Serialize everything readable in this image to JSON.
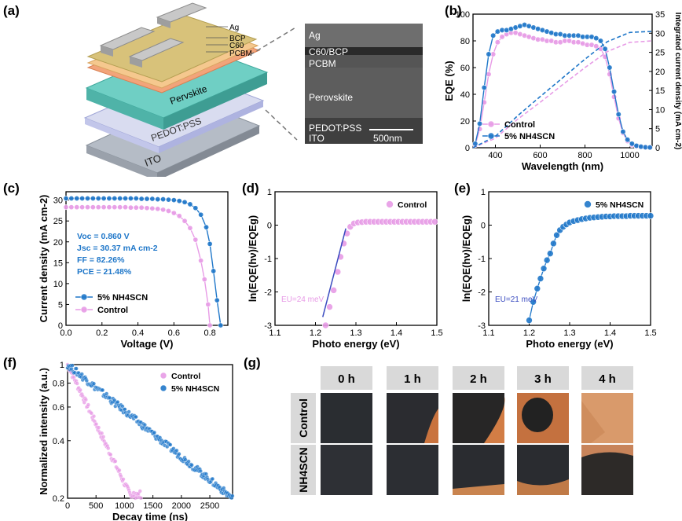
{
  "panel_labels": {
    "a": "(a)",
    "b": "(b)",
    "c": "(c)",
    "d": "(d)",
    "e": "(e)",
    "f": "(f)",
    "g": "(g)"
  },
  "colors": {
    "control": "#e79be6",
    "nh4": "#1f77c9",
    "blue_line": "#3b4cc0"
  },
  "panel_a": {
    "layers": [
      "Ag",
      "BCP",
      "C60",
      "PCBM",
      "Pervskite",
      "PEDOT:PSS",
      "ITO"
    ],
    "sem_labels": [
      "Ag",
      "C60/BCP",
      "PCBM",
      "Perovskite",
      "PEDOT:PSS",
      "ITO"
    ],
    "scale_bar": "500nm"
  },
  "chart_data": [
    {
      "id": "b",
      "type": "line",
      "xlabel": "Wavelength (nm)",
      "ylabel": "EQE (%)",
      "y2label": "Integrated current density (mA cm-2)",
      "xlim": [
        300,
        1100
      ],
      "ylim": [
        0,
        100
      ],
      "y2lim": [
        0,
        35
      ],
      "xticks": [
        400,
        600,
        800,
        1000
      ],
      "yticks": [
        0,
        20,
        40,
        60,
        80,
        100
      ],
      "y2ticks": [
        0,
        5,
        10,
        15,
        20,
        25,
        30,
        35
      ],
      "legend": [
        "Control",
        "5% NH4SCN"
      ],
      "legend_position": "bottom-left",
      "series": [
        {
          "name": "Control",
          "x": [
            310,
            330,
            350,
            370,
            390,
            410,
            430,
            450,
            470,
            490,
            510,
            530,
            550,
            570,
            590,
            610,
            630,
            650,
            670,
            690,
            710,
            730,
            750,
            770,
            790,
            810,
            830,
            850,
            870,
            890,
            910,
            930,
            950,
            970,
            990,
            1010,
            1030,
            1050,
            1070,
            1090
          ],
          "values": [
            2,
            14,
            34,
            55,
            70,
            79,
            83,
            85,
            86,
            86,
            85,
            84,
            83,
            82,
            81,
            81,
            80,
            80,
            79,
            79,
            80,
            80,
            79,
            79,
            78,
            77,
            77,
            76,
            74,
            68,
            55,
            38,
            22,
            11,
            5,
            2,
            1,
            0.5,
            0.3,
            0.2
          ]
        },
        {
          "name": "5% NH4SCN",
          "x": [
            310,
            330,
            350,
            370,
            390,
            410,
            430,
            450,
            470,
            490,
            510,
            530,
            550,
            570,
            590,
            610,
            630,
            650,
            670,
            690,
            710,
            730,
            750,
            770,
            790,
            810,
            830,
            850,
            870,
            890,
            910,
            930,
            950,
            970,
            990,
            1010,
            1030,
            1050,
            1070,
            1090
          ],
          "values": [
            3,
            18,
            45,
            70,
            84,
            87,
            88,
            88,
            89,
            90,
            91,
            92,
            91,
            90,
            89,
            88,
            87,
            86,
            85,
            85,
            84,
            84,
            84,
            84,
            83,
            83,
            83,
            82,
            80,
            74,
            60,
            42,
            25,
            12,
            6,
            3,
            1.5,
            0.8,
            0.4,
            0.2
          ]
        },
        {
          "name": "Control integrated",
          "x": [
            300,
            400,
            500,
            600,
            700,
            800,
            900,
            1000,
            1100
          ],
          "values": [
            0,
            2.5,
            7.5,
            11.9,
            16.5,
            21.0,
            25.2,
            27.6,
            28.0
          ]
        },
        {
          "name": "5% NH4SCN integrated",
          "x": [
            300,
            400,
            500,
            600,
            700,
            800,
            900,
            1000,
            1100
          ],
          "values": [
            0,
            3.0,
            8.4,
            13.4,
            18.3,
            23.2,
            27.8,
            30.2,
            30.5
          ]
        }
      ]
    },
    {
      "id": "c",
      "type": "line",
      "xlabel": "Voltage (V)",
      "ylabel": "Current density (mA cm-2)",
      "xlim": [
        0,
        0.9
      ],
      "ylim": [
        0,
        32
      ],
      "xticks": [
        0.0,
        0.2,
        0.4,
        0.6,
        0.8
      ],
      "yticks": [
        0,
        5,
        10,
        15,
        20,
        25,
        30
      ],
      "annotations": [
        "Voc = 0.860 V",
        "Jsc = 30.37 mA cm-2",
        "FF = 82.26%",
        "PCE = 21.48%"
      ],
      "legend": [
        "5% NH4SCN",
        "Control"
      ],
      "legend_position": "bottom-left",
      "series": [
        {
          "name": "5% NH4SCN",
          "x": [
            0,
            0.03,
            0.06,
            0.09,
            0.12,
            0.15,
            0.18,
            0.21,
            0.24,
            0.27,
            0.3,
            0.33,
            0.36,
            0.39,
            0.42,
            0.45,
            0.48,
            0.51,
            0.54,
            0.57,
            0.6,
            0.63,
            0.66,
            0.69,
            0.72,
            0.75,
            0.78,
            0.8,
            0.82,
            0.84,
            0.86
          ],
          "values": [
            30.4,
            30.4,
            30.4,
            30.4,
            30.4,
            30.4,
            30.4,
            30.4,
            30.4,
            30.4,
            30.4,
            30.4,
            30.4,
            30.4,
            30.3,
            30.3,
            30.3,
            30.2,
            30.2,
            30.1,
            30.0,
            29.8,
            29.5,
            29.0,
            28.1,
            26.5,
            23.5,
            19.5,
            13,
            6,
            0
          ]
        },
        {
          "name": "Control",
          "x": [
            0,
            0.03,
            0.06,
            0.09,
            0.12,
            0.15,
            0.18,
            0.21,
            0.24,
            0.27,
            0.3,
            0.33,
            0.36,
            0.39,
            0.42,
            0.45,
            0.48,
            0.51,
            0.54,
            0.57,
            0.6,
            0.63,
            0.66,
            0.69,
            0.72,
            0.75,
            0.77,
            0.79,
            0.8
          ],
          "values": [
            28.3,
            28.3,
            28.3,
            28.3,
            28.3,
            28.3,
            28.3,
            28.3,
            28.3,
            28.3,
            28.3,
            28.3,
            28.2,
            28.2,
            28.2,
            28.1,
            28.0,
            27.9,
            27.7,
            27.4,
            26.9,
            26.2,
            25.0,
            23.3,
            20.5,
            15.5,
            11,
            5,
            0
          ]
        }
      ]
    },
    {
      "id": "d",
      "type": "scatter",
      "xlabel": "Photo energy (eV)",
      "ylabel": "ln(EQE(hν)/EQEg)",
      "xlim": [
        1.1,
        1.5
      ],
      "ylim": [
        -3,
        1
      ],
      "xticks": [
        1.1,
        1.2,
        1.3,
        1.4,
        1.5
      ],
      "yticks": [
        -3,
        -2,
        -1,
        0,
        1
      ],
      "annotation": "EU=24 meV",
      "legend": [
        "Control"
      ],
      "legend_position": "top-right",
      "series": [
        {
          "name": "Control",
          "x": [
            1.225,
            1.235,
            1.245,
            1.255,
            1.262,
            1.27,
            1.278,
            1.286,
            1.295,
            1.305,
            1.315,
            1.325,
            1.335,
            1.345,
            1.355,
            1.365,
            1.375,
            1.385,
            1.395,
            1.405,
            1.415,
            1.425,
            1.435,
            1.445,
            1.455,
            1.465,
            1.475,
            1.485,
            1.495
          ],
          "values": [
            -3.0,
            -2.45,
            -1.95,
            -1.4,
            -0.95,
            -0.55,
            -0.25,
            -0.05,
            0.05,
            0.08,
            0.09,
            0.1,
            0.1,
            0.1,
            0.1,
            0.1,
            0.1,
            0.1,
            0.1,
            0.1,
            0.1,
            0.1,
            0.1,
            0.1,
            0.1,
            0.1,
            0.1,
            0.1,
            0.1
          ]
        },
        {
          "name": "Urbach fit",
          "x": [
            1.218,
            1.275
          ],
          "values": [
            -2.75,
            -0.1
          ]
        }
      ]
    },
    {
      "id": "e",
      "type": "scatter",
      "xlabel": "Photo energy (eV)",
      "ylabel": "ln(EQE(hν)/EQEg)",
      "xlim": [
        1.1,
        1.5
      ],
      "ylim": [
        -3,
        1
      ],
      "xticks": [
        1.1,
        1.2,
        1.3,
        1.4,
        1.5
      ],
      "yticks": [
        -3,
        -2,
        -1,
        0,
        1
      ],
      "annotation": "EU=21 meV",
      "legend": [
        "5% NH4SCN"
      ],
      "legend_position": "top-right",
      "series": [
        {
          "name": "5% NH4SCN",
          "x": [
            1.2,
            1.21,
            1.22,
            1.228,
            1.236,
            1.244,
            1.252,
            1.26,
            1.268,
            1.276,
            1.284,
            1.292,
            1.3,
            1.31,
            1.32,
            1.33,
            1.34,
            1.35,
            1.36,
            1.37,
            1.38,
            1.39,
            1.4,
            1.41,
            1.42,
            1.43,
            1.44,
            1.45,
            1.46,
            1.47,
            1.48,
            1.49,
            1.5
          ],
          "values": [
            -2.85,
            -2.3,
            -1.9,
            -1.6,
            -1.3,
            -1.05,
            -0.85,
            -0.55,
            -0.3,
            -0.15,
            -0.05,
            0.02,
            0.08,
            0.12,
            0.15,
            0.18,
            0.2,
            0.22,
            0.23,
            0.24,
            0.25,
            0.26,
            0.26,
            0.27,
            0.27,
            0.27,
            0.27,
            0.28,
            0.28,
            0.28,
            0.28,
            0.28,
            0.28
          ]
        }
      ]
    },
    {
      "id": "f",
      "type": "scatter",
      "xlabel": "Decay time (ns)",
      "ylabel": "Normalized intensity (a.u.)",
      "xlim": [
        0,
        2900
      ],
      "ylim": [
        0.2,
        1
      ],
      "yscale": "log",
      "xticks": [
        0,
        500,
        1000,
        1500,
        2000,
        2500
      ],
      "yticks": [
        0.2,
        0.4,
        0.6,
        0.8,
        1
      ],
      "legend": [
        "Control",
        "5% NH4SCN"
      ],
      "legend_position": "top-right",
      "series": [
        {
          "name": "Control",
          "decay_tau_ns": 700,
          "x_end": 1300
        },
        {
          "name": "5% NH4SCN",
          "decay_tau_ns": 1800,
          "x_end": 2900
        }
      ]
    }
  ],
  "panel_g": {
    "times": [
      "0 h",
      "1 h",
      "2 h",
      "3 h",
      "4 h"
    ],
    "rows": [
      "Control",
      "NH4SCN"
    ]
  }
}
